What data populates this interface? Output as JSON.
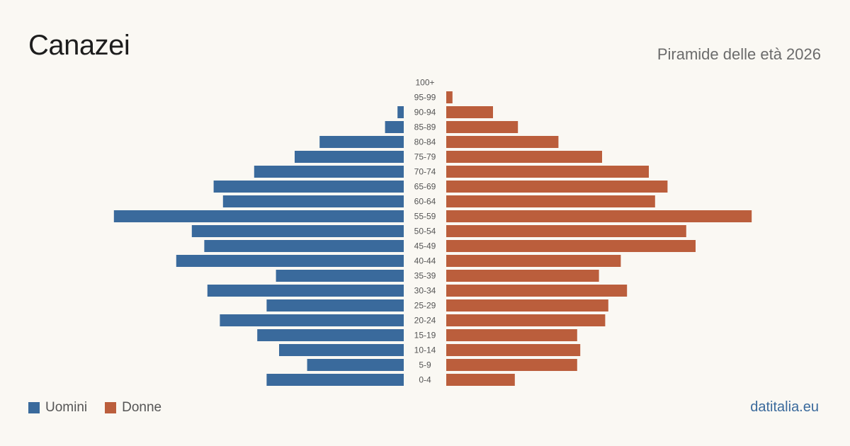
{
  "header": {
    "title": "Canazei",
    "subtitle": "Piramide delle età 2026"
  },
  "footer": {
    "source": "datitalia.eu"
  },
  "colors": {
    "male": "#3a6a9c",
    "female": "#bb5e3c"
  },
  "chart_data": {
    "type": "bar",
    "orientation": "horizontal-population-pyramid",
    "categories": [
      "100+",
      "95-99",
      "90-94",
      "85-89",
      "80-84",
      "75-79",
      "70-74",
      "65-69",
      "60-64",
      "55-59",
      "50-54",
      "45-49",
      "40-44",
      "35-39",
      "30-34",
      "25-29",
      "20-24",
      "15-19",
      "10-14",
      "5-9",
      "0-4"
    ],
    "series": [
      {
        "name": "Uomini",
        "values": [
          0,
          0,
          2,
          6,
          27,
          35,
          48,
          61,
          58,
          93,
          68,
          64,
          73,
          41,
          63,
          44,
          59,
          47,
          40,
          31,
          44
        ]
      },
      {
        "name": "Donne",
        "values": [
          0,
          2,
          15,
          23,
          36,
          50,
          65,
          71,
          67,
          98,
          77,
          80,
          56,
          49,
          58,
          52,
          51,
          42,
          43,
          42,
          22
        ]
      }
    ],
    "xlim": [
      0,
      100
    ],
    "grid": false,
    "legend": "bottom-left"
  }
}
